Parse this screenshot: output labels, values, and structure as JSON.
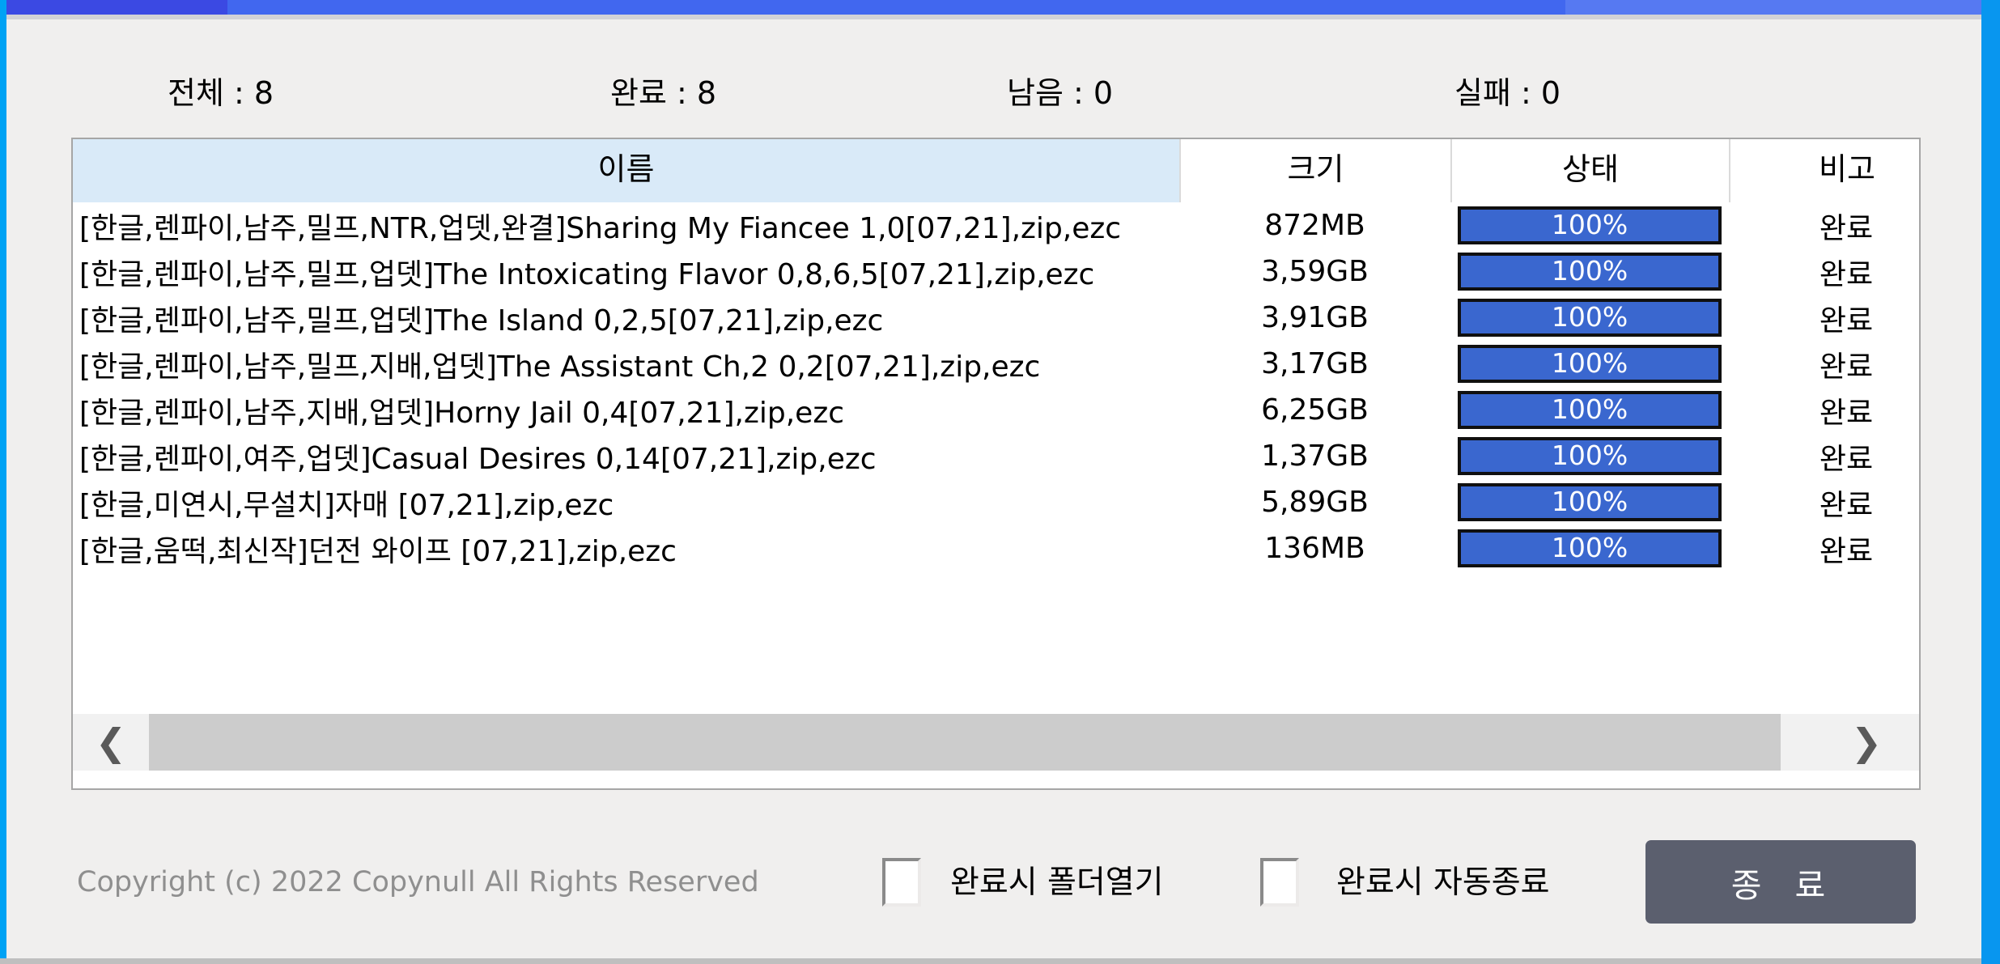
{
  "stats": {
    "total": "전체 : 8",
    "done": "완료 : 8",
    "remaining": "남음 : 0",
    "failed": "실패 : 0"
  },
  "table": {
    "columns": {
      "name": "이름",
      "size": "크기",
      "status": "상태",
      "note": "비고"
    },
    "rows": [
      {
        "name": "[한글,렌파이,남주,밀프,NTR,업뎃,완결]Sharing My Fiancee 1,0[07,21],zip,ezc",
        "size": "872MB",
        "progress": "100%",
        "note": "완료"
      },
      {
        "name": "[한글,렌파이,남주,밀프,업뎃]The Intoxicating Flavor 0,8,6,5[07,21],zip,ezc",
        "size": "3,59GB",
        "progress": "100%",
        "note": "완료"
      },
      {
        "name": "[한글,렌파이,남주,밀프,업뎃]The Island 0,2,5[07,21],zip,ezc",
        "size": "3,91GB",
        "progress": "100%",
        "note": "완료"
      },
      {
        "name": "[한글,렌파이,남주,밀프,지배,업뎃]The Assistant Ch,2 0,2[07,21],zip,ezc",
        "size": "3,17GB",
        "progress": "100%",
        "note": "완료"
      },
      {
        "name": "[한글,렌파이,남주,지배,업뎃]Horny Jail 0,4[07,21],zip,ezc",
        "size": "6,25GB",
        "progress": "100%",
        "note": "완료"
      },
      {
        "name": "[한글,렌파이,여주,업뎃]Casual Desires 0,14[07,21],zip,ezc",
        "size": "1,37GB",
        "progress": "100%",
        "note": "완료"
      },
      {
        "name": "[한글,미연시,무설치]자매 [07,21],zip,ezc",
        "size": "5,89GB",
        "progress": "100%",
        "note": "완료"
      },
      {
        "name": "[한글,움떡,최신작]던전 와이프 [07,21],zip,ezc",
        "size": "136MB",
        "progress": "100%",
        "note": "완료"
      }
    ],
    "scrollbar": {
      "left_arrow": "❮",
      "right_arrow": "❯"
    }
  },
  "footer": {
    "copyright": "Copyright (c) 2022 Copynull All Rights Reserved",
    "open_folder_label": "완료시 폴더열기",
    "auto_exit_label": "완료시 자동종료",
    "exit_button": "종 료"
  },
  "colors": {
    "window_border_azure": "#0098f0",
    "titlebar_blue_dark": "#3b49e3",
    "titlebar_blue": "#4167ef",
    "titlebar_blue_light": "#5679f2",
    "header_highlight": "#d9eaf8",
    "progress_blue": "#3a67cf",
    "exit_button_gray": "#5b5f6e"
  }
}
